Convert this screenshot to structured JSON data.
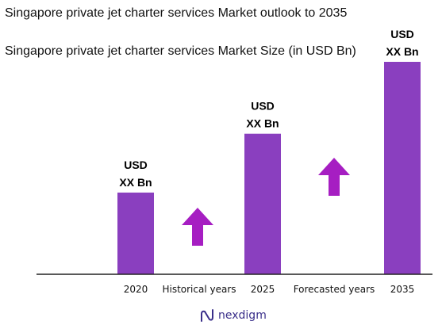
{
  "header": {
    "title": "Singapore private jet charter services Market outlook to 2035",
    "subtitle": " Singapore private jet charter services Market Size (in USD Bn)"
  },
  "colors": {
    "bar": "#8a3fbf",
    "arrow": "#a61ec2",
    "axis": "#222222",
    "logo": "#3a2f8a"
  },
  "chart_data": {
    "type": "bar",
    "categories": [
      "2020",
      "2025",
      "2035"
    ],
    "values": [
      1.0,
      1.72,
      2.6
    ],
    "value_labels": [
      [
        "USD",
        "XX Bn"
      ],
      [
        "USD",
        "XX Bn"
      ],
      [
        "USD",
        "XX Bn"
      ]
    ],
    "period_labels": [
      "Historical years",
      "Forecasted years"
    ],
    "ylim": [
      0,
      2.6
    ],
    "grid": false,
    "legend": "none"
  },
  "brand": {
    "logo_text": "nexdigm",
    "logo_icon": "nexdigm-n-icon"
  }
}
